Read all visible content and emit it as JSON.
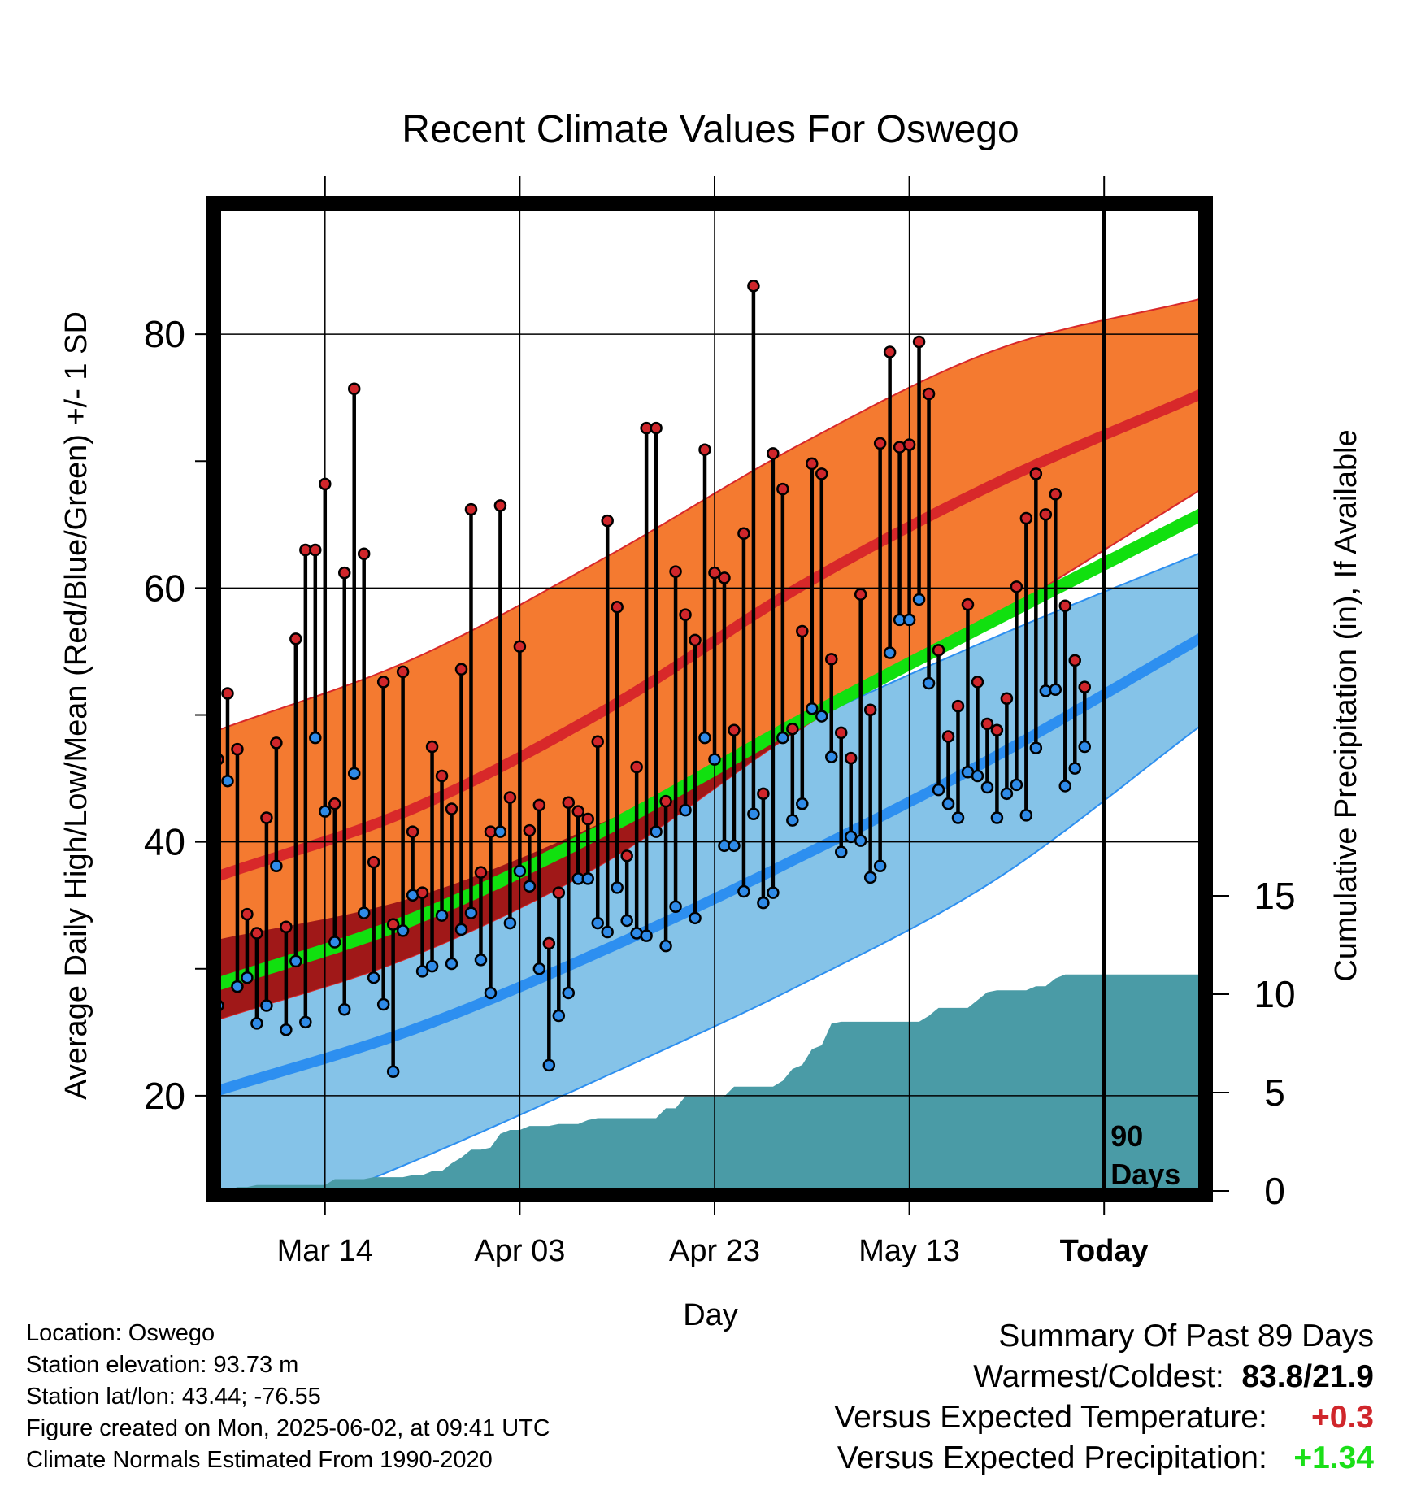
{
  "chart_data": {
    "type": "line",
    "title": "Recent Climate Values For Oswego",
    "xlabel": "Day",
    "ylabel": "Average Daily High/Low/Mean (Red/Blue/Green) +/- 1 SD",
    "y2label": "Cumulative Precipitation (in), If Available",
    "x_tick_labels": [
      "Mar 14",
      "Apr 03",
      "Apr 23",
      "May 13",
      "Today"
    ],
    "x_tick_days": [
      11,
      31,
      51,
      71,
      91
    ],
    "x_range_days": [
      0,
      101
    ],
    "ylim": [
      12.5,
      90
    ],
    "y_ticks": [
      20,
      40,
      60,
      80
    ],
    "y_minor_ticks": [
      30,
      50,
      70
    ],
    "y2lim": [
      0,
      50
    ],
    "y2_ticks": [
      0,
      5,
      10,
      15
    ],
    "today_marker_label": "90 Days",
    "grid": true,
    "colors": {
      "high_sd_band": "#f47a30",
      "high_normal": "#d8282a",
      "low_sd_band": "#85c3e8",
      "low_normal": "#2d8ff0",
      "mean_normal": "#11e00f",
      "overlap": "#a01818",
      "precip": "#4a9ba6",
      "high_dot": "#d0262b",
      "low_dot": "#2f8be8"
    },
    "normals": {
      "day": [
        0,
        20,
        40,
        60,
        80,
        101
      ],
      "high_mean": [
        37.3,
        42.6,
        50.5,
        60.2,
        68.3,
        75.3
      ],
      "high_upper": [
        48.8,
        54.4,
        62.5,
        71.4,
        78.8,
        82.8
      ],
      "high_lower": [
        26.0,
        31.0,
        38.5,
        49.0,
        57.8,
        67.8
      ],
      "low_mean": [
        20.4,
        25.2,
        31.6,
        38.9,
        46.8,
        56.1
      ],
      "low_upper": [
        32.3,
        35.6,
        41.7,
        49.3,
        56.2,
        62.8
      ],
      "low_lower": [
        8.6,
        14.8,
        21.6,
        28.8,
        37.1,
        49.2
      ],
      "mean_normal": [
        28.8,
        33.9,
        41.1,
        49.6,
        57.6,
        65.8
      ]
    },
    "series": [
      {
        "name": "Daily High",
        "x": [
          0,
          1,
          2,
          3,
          4,
          5,
          6,
          7,
          8,
          9,
          10,
          11,
          12,
          13,
          14,
          15,
          16,
          17,
          18,
          19,
          20,
          21,
          22,
          23,
          24,
          25,
          26,
          27,
          28,
          29,
          30,
          31,
          32,
          33,
          34,
          35,
          36,
          37,
          38,
          39,
          40,
          41,
          42,
          43,
          44,
          45,
          46,
          47,
          48,
          49,
          50,
          51,
          52,
          53,
          54,
          55,
          56,
          57,
          58,
          59,
          60,
          61,
          62,
          63,
          64,
          65,
          66,
          67,
          68,
          69,
          70,
          71,
          72,
          73,
          74,
          75,
          76,
          77,
          78,
          79,
          80,
          81,
          82,
          83,
          84,
          85,
          86,
          87,
          88,
          89
        ],
        "values": [
          46.5,
          51.7,
          47.3,
          34.3,
          32.8,
          41.9,
          47.8,
          33.3,
          56.0,
          63.0,
          63.0,
          68.2,
          43.0,
          61.2,
          75.7,
          62.7,
          38.4,
          52.6,
          33.5,
          53.4,
          40.8,
          36.0,
          47.5,
          45.2,
          42.6,
          53.6,
          66.2,
          37.6,
          40.8,
          66.5,
          43.5,
          55.4,
          40.9,
          42.9,
          32.0,
          36.0,
          43.1,
          42.4,
          41.8,
          47.9,
          65.3,
          58.5,
          38.9,
          45.9,
          72.6,
          72.6,
          43.2,
          61.3,
          57.9,
          55.9,
          70.9,
          61.2,
          60.8,
          48.8,
          64.3,
          83.8,
          43.8,
          70.6,
          67.8,
          48.9,
          56.6,
          69.8,
          69.0,
          54.4,
          48.6,
          46.6,
          59.5,
          50.4,
          71.4,
          78.6,
          71.1,
          71.3,
          79.4,
          75.3,
          55.1,
          48.3,
          50.7,
          58.7,
          52.6,
          49.3,
          48.8,
          51.3,
          60.1,
          65.5,
          69.0,
          65.8,
          67.4,
          58.6,
          54.3,
          52.2
        ]
      },
      {
        "name": "Daily Low",
        "x": [
          0,
          1,
          2,
          3,
          4,
          5,
          6,
          7,
          8,
          9,
          10,
          11,
          12,
          13,
          14,
          15,
          16,
          17,
          18,
          19,
          20,
          21,
          22,
          23,
          24,
          25,
          26,
          27,
          28,
          29,
          30,
          31,
          32,
          33,
          34,
          35,
          36,
          37,
          38,
          39,
          40,
          41,
          42,
          43,
          44,
          45,
          46,
          47,
          48,
          49,
          50,
          51,
          52,
          53,
          54,
          55,
          56,
          57,
          58,
          59,
          60,
          61,
          62,
          63,
          64,
          65,
          66,
          67,
          68,
          69,
          70,
          71,
          72,
          73,
          74,
          75,
          76,
          77,
          78,
          79,
          80,
          81,
          82,
          83,
          84,
          85,
          86,
          87,
          88,
          89
        ],
        "values": [
          27.1,
          44.8,
          28.6,
          29.3,
          25.7,
          27.1,
          38.1,
          25.2,
          30.6,
          25.8,
          48.2,
          42.4,
          32.1,
          26.8,
          45.4,
          34.4,
          29.3,
          27.2,
          21.9,
          33.0,
          35.8,
          29.8,
          30.2,
          34.2,
          30.4,
          33.1,
          34.4,
          30.7,
          28.1,
          40.8,
          33.6,
          37.7,
          36.5,
          30.0,
          22.4,
          26.3,
          28.1,
          37.1,
          37.1,
          33.6,
          32.9,
          36.4,
          33.8,
          32.8,
          32.6,
          40.8,
          31.8,
          34.9,
          42.5,
          34.0,
          48.2,
          46.5,
          39.7,
          39.7,
          36.1,
          42.2,
          35.2,
          36.0,
          48.2,
          41.7,
          43.0,
          50.5,
          49.9,
          46.7,
          39.2,
          40.4,
          40.1,
          37.2,
          38.1,
          54.9,
          57.5,
          57.5,
          59.1,
          52.5,
          44.1,
          43.0,
          41.9,
          45.5,
          45.2,
          44.3,
          41.9,
          43.8,
          44.5,
          42.1,
          47.4,
          51.9,
          52.0,
          44.4,
          45.8,
          47.5
        ]
      },
      {
        "name": "Cumulative Precipitation",
        "x": [
          0,
          1,
          2,
          3,
          4,
          5,
          6,
          7,
          8,
          9,
          10,
          11,
          12,
          13,
          14,
          15,
          16,
          17,
          18,
          19,
          20,
          21,
          22,
          23,
          24,
          25,
          26,
          27,
          28,
          29,
          30,
          31,
          32,
          33,
          34,
          35,
          36,
          37,
          38,
          39,
          40,
          41,
          42,
          43,
          44,
          45,
          46,
          47,
          48,
          49,
          50,
          51,
          52,
          53,
          54,
          55,
          56,
          57,
          58,
          59,
          60,
          61,
          62,
          63,
          64,
          65,
          66,
          67,
          68,
          69,
          70,
          71,
          72,
          73,
          74,
          75,
          76,
          77,
          78,
          79,
          80,
          81,
          82,
          83,
          84,
          85,
          86,
          87,
          88,
          89,
          90,
          91,
          92,
          93,
          94,
          95,
          96,
          97,
          98,
          99,
          100,
          101
        ],
        "values": [
          0.0,
          0.0,
          0.2,
          0.2,
          0.3,
          0.3,
          0.3,
          0.3,
          0.3,
          0.3,
          0.3,
          0.3,
          0.6,
          0.6,
          0.6,
          0.6,
          0.7,
          0.7,
          0.7,
          0.7,
          0.8,
          0.8,
          1.0,
          1.0,
          1.4,
          1.7,
          2.1,
          2.1,
          2.2,
          2.9,
          3.1,
          3.1,
          3.3,
          3.3,
          3.3,
          3.4,
          3.4,
          3.4,
          3.6,
          3.7,
          3.7,
          3.7,
          3.7,
          3.7,
          3.7,
          3.7,
          4.2,
          4.2,
          4.8,
          4.8,
          4.8,
          4.8,
          4.8,
          5.3,
          5.3,
          5.3,
          5.3,
          5.3,
          5.6,
          6.2,
          6.4,
          7.2,
          7.4,
          8.5,
          8.6,
          8.6,
          8.6,
          8.6,
          8.6,
          8.6,
          8.6,
          8.6,
          8.6,
          8.9,
          9.3,
          9.3,
          9.3,
          9.3,
          9.7,
          10.1,
          10.2,
          10.2,
          10.2,
          10.2,
          10.4,
          10.4,
          10.8,
          11.0,
          11.0,
          11.0,
          11.0,
          11.0,
          11.0,
          11.0,
          11.0,
          11.0,
          11.0,
          11.0,
          11.0,
          11.0,
          11.0,
          11.0
        ]
      }
    ]
  },
  "info": {
    "location": "Location: Oswego",
    "elevation": "Station elevation: 93.73 m",
    "latlon": "Station lat/lon: 43.44; -76.55",
    "created": "Figure created on Mon, 2025-06-02, at 09:41 UTC",
    "normals": "Climate Normals Estimated From 1990-2020"
  },
  "summary": {
    "title": "Summary Of Past 89 Days",
    "warmest_coldest_label": "Warmest/Coldest:",
    "warmest_coldest_value": "83.8/21.9",
    "temp_label": "Versus Expected Temperature:",
    "temp_value": "+0.3",
    "temp_color": "#d0262b",
    "precip_label": "Versus Expected Precipitation:",
    "precip_value": "+1.34",
    "precip_color": "#1adf18"
  }
}
